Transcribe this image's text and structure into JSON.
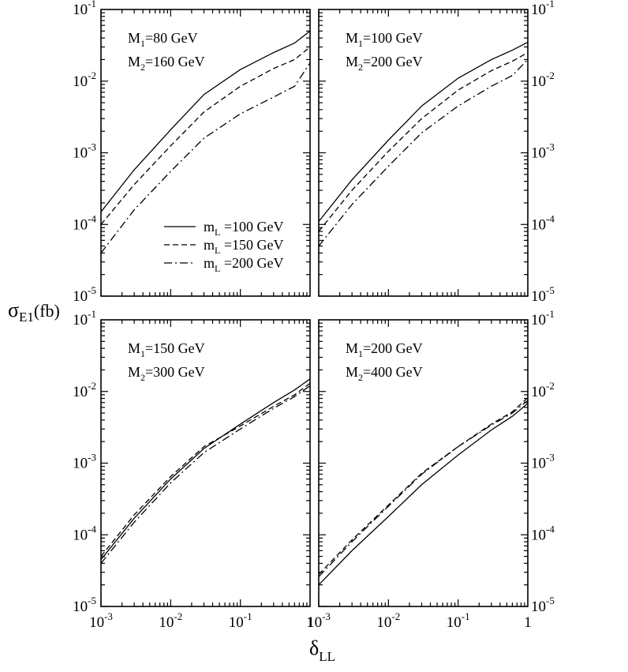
{
  "figure": {
    "ylabel_main": "σ",
    "ylabel_sub": "E1",
    "ylabel_unit": "(fb)",
    "xlabel_main": "δ",
    "xlabel_sub": "LL"
  },
  "axis": {
    "x_ticks": [
      {
        "value": 0.001,
        "base": "10",
        "exp": "-3"
      },
      {
        "value": 0.01,
        "base": "10",
        "exp": "-2"
      },
      {
        "value": 0.1,
        "base": "10",
        "exp": "-1"
      },
      {
        "value": 1,
        "base": "1",
        "exp": ""
      }
    ],
    "y_ticks": [
      {
        "value": 1e-05,
        "base": "10",
        "exp": "-5"
      },
      {
        "value": 0.0001,
        "base": "10",
        "exp": "-4"
      },
      {
        "value": 0.001,
        "base": "10",
        "exp": "-3"
      },
      {
        "value": 0.01,
        "base": "10",
        "exp": "-2"
      },
      {
        "value": 0.1,
        "base": "10",
        "exp": "-1"
      }
    ]
  },
  "legend": [
    {
      "prefix": "m",
      "sub": "L",
      "text": " =100 GeV",
      "style": "solid"
    },
    {
      "prefix": "m",
      "sub": "L",
      "text": " =150 GeV",
      "style": "dashed"
    },
    {
      "prefix": "m",
      "sub": "L",
      "text": " =200 GeV",
      "style": "dashdot"
    }
  ],
  "chart_data": [
    {
      "type": "line",
      "xscale": "log",
      "yscale": "log",
      "xlim": [
        0.001,
        1
      ],
      "ylim": [
        1e-05,
        0.1
      ],
      "annotations": [
        {
          "prefix": "M",
          "sub": "1",
          "text": "=80 GeV"
        },
        {
          "prefix": "M",
          "sub": "2",
          "text": "=160 GeV"
        }
      ],
      "series": [
        {
          "name": "m_L=100 GeV",
          "style": "solid",
          "x": [
            0.001,
            0.003,
            0.01,
            0.03,
            0.1,
            0.3,
            0.6,
            1
          ],
          "y": [
            0.00015,
            0.00058,
            0.0021,
            0.0065,
            0.0145,
            0.025,
            0.034,
            0.05
          ]
        },
        {
          "name": "m_L=150 GeV",
          "style": "dashed",
          "x": [
            0.001,
            0.003,
            0.01,
            0.03,
            0.1,
            0.3,
            0.6,
            1
          ],
          "y": [
            0.0001,
            0.00036,
            0.00125,
            0.0037,
            0.0085,
            0.015,
            0.02,
            0.03
          ]
        },
        {
          "name": "m_L=200 GeV",
          "style": "dashdot",
          "x": [
            0.001,
            0.003,
            0.01,
            0.03,
            0.1,
            0.3,
            0.6,
            1
          ],
          "y": [
            4e-05,
            0.00016,
            0.00055,
            0.0016,
            0.0035,
            0.006,
            0.0085,
            0.018
          ]
        }
      ]
    },
    {
      "type": "line",
      "xscale": "log",
      "yscale": "log",
      "xlim": [
        0.001,
        1
      ],
      "ylim": [
        1e-05,
        0.1
      ],
      "annotations": [
        {
          "prefix": "M",
          "sub": "1",
          "text": "=100 GeV"
        },
        {
          "prefix": "M",
          "sub": "2",
          "text": "=200 GeV"
        }
      ],
      "series": [
        {
          "name": "m_L=100 GeV",
          "style": "solid",
          "x": [
            0.001,
            0.003,
            0.01,
            0.03,
            0.1,
            0.3,
            0.6,
            1
          ],
          "y": [
            0.00011,
            0.00042,
            0.0015,
            0.0045,
            0.011,
            0.02,
            0.027,
            0.035
          ]
        },
        {
          "name": "m_L=150 GeV",
          "style": "dashed",
          "x": [
            0.001,
            0.003,
            0.01,
            0.03,
            0.1,
            0.3,
            0.6,
            1
          ],
          "y": [
            8e-05,
            0.0003,
            0.00105,
            0.003,
            0.0075,
            0.014,
            0.019,
            0.025
          ]
        },
        {
          "name": "m_L=200 GeV",
          "style": "dashdot",
          "x": [
            0.001,
            0.003,
            0.01,
            0.03,
            0.1,
            0.3,
            0.6,
            1
          ],
          "y": [
            5e-05,
            0.00019,
            0.00065,
            0.0019,
            0.0045,
            0.0085,
            0.012,
            0.02
          ]
        }
      ]
    },
    {
      "type": "line",
      "xscale": "log",
      "yscale": "log",
      "xlim": [
        0.001,
        1
      ],
      "ylim": [
        1e-05,
        0.1
      ],
      "annotations": [
        {
          "prefix": "M",
          "sub": "1",
          "text": "=150 GeV"
        },
        {
          "prefix": "M",
          "sub": "2",
          "text": "=300 GeV"
        }
      ],
      "series": [
        {
          "name": "m_L=100 GeV",
          "style": "solid",
          "x": [
            0.001,
            0.003,
            0.01,
            0.03,
            0.1,
            0.3,
            0.6,
            1
          ],
          "y": [
            4.5e-05,
            0.00017,
            0.0006,
            0.0016,
            0.0035,
            0.007,
            0.0105,
            0.015
          ]
        },
        {
          "name": "m_L=150 GeV",
          "style": "dashed",
          "x": [
            0.001,
            0.003,
            0.01,
            0.03,
            0.1,
            0.3,
            0.6,
            1
          ],
          "y": [
            5e-05,
            0.00019,
            0.00065,
            0.0017,
            0.0033,
            0.0062,
            0.009,
            0.013
          ]
        },
        {
          "name": "m_L=200 GeV",
          "style": "dashdot",
          "x": [
            0.001,
            0.003,
            0.01,
            0.03,
            0.1,
            0.3,
            0.6,
            1
          ],
          "y": [
            4e-05,
            0.00015,
            0.00053,
            0.0014,
            0.003,
            0.0058,
            0.0085,
            0.012
          ]
        }
      ]
    },
    {
      "type": "line",
      "xscale": "log",
      "yscale": "log",
      "xlim": [
        0.001,
        1
      ],
      "ylim": [
        1e-05,
        0.1
      ],
      "annotations": [
        {
          "prefix": "M",
          "sub": "1",
          "text": "=200 GeV"
        },
        {
          "prefix": "M",
          "sub": "2",
          "text": "=400 GeV"
        }
      ],
      "series": [
        {
          "name": "m_L=100 GeV",
          "style": "solid",
          "x": [
            0.001,
            0.003,
            0.01,
            0.03,
            0.1,
            0.3,
            0.6,
            1
          ],
          "y": [
            2e-05,
            6e-05,
            0.00018,
            0.0005,
            0.0013,
            0.0029,
            0.0045,
            0.0068
          ]
        },
        {
          "name": "m_L=150 GeV",
          "style": "dashed",
          "x": [
            0.001,
            0.003,
            0.01,
            0.03,
            0.1,
            0.3,
            0.6,
            1
          ],
          "y": [
            2.8e-05,
            8.5e-05,
            0.00026,
            0.00072,
            0.0017,
            0.0035,
            0.0052,
            0.0082
          ]
        },
        {
          "name": "m_L=200 GeV",
          "style": "dashdot",
          "x": [
            0.001,
            0.003,
            0.01,
            0.03,
            0.1,
            0.3,
            0.6,
            1
          ],
          "y": [
            2.6e-05,
            8e-05,
            0.00025,
            0.0007,
            0.0017,
            0.0034,
            0.005,
            0.0075
          ]
        }
      ]
    }
  ]
}
